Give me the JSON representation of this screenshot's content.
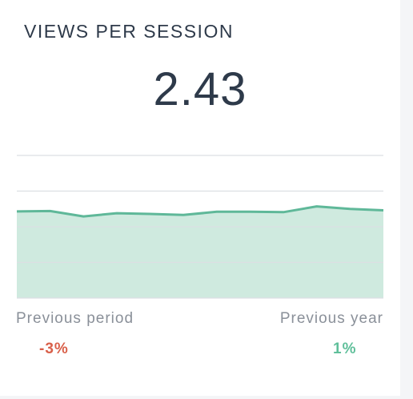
{
  "widget": {
    "title": "VIEWS PER SESSION",
    "value": "2.43"
  },
  "comparisons": {
    "previous_period": {
      "label": "Previous period",
      "change": "-3%",
      "color": "#d9604a"
    },
    "previous_year": {
      "label": "Previous year",
      "change": "1%",
      "color": "#5fbf9a"
    }
  },
  "chart_data": {
    "type": "area",
    "x": [
      1,
      2,
      3,
      4,
      5,
      6,
      7,
      8,
      9,
      10,
      11,
      12
    ],
    "values": [
      2.43,
      2.44,
      2.29,
      2.38,
      2.36,
      2.33,
      2.42,
      2.42,
      2.41,
      2.57,
      2.5,
      2.46
    ],
    "ylim": [
      0,
      4
    ],
    "grid": true,
    "line_color": "#5fb899",
    "fill_color": "#cfeadf"
  }
}
